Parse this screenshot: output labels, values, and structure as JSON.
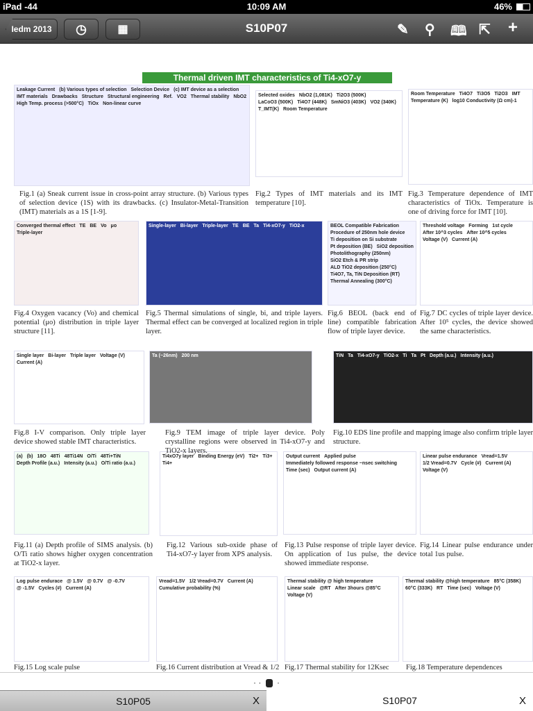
{
  "status": {
    "carrier": "iPad -44",
    "time": "10:09 AM",
    "battery": "46%"
  },
  "toolbar": {
    "back_label": "Iedm 2013",
    "title": "S10P07",
    "icons": [
      "clock-icon",
      "grid-icon",
      "pencil-icon",
      "search-icon",
      "book-icon",
      "share-icon",
      "plus-icon"
    ]
  },
  "poster": {
    "banner": "Thermal driven IMT characteristics of Ti4-xO7-y",
    "figs": {
      "f1": [
        "Leakage Current",
        "(b) Various types of selection",
        "Selection Device",
        "(c) IMT device as a selection",
        "IMT materials",
        "Drawbacks",
        "Structure",
        "Structural engineering",
        "Ref.",
        "VO2",
        "Thermal stability",
        "NbO2",
        "High Temp. process (>500°C)",
        "TiOx",
        "Non-linear curve"
      ],
      "f2": [
        "Selected oxides",
        "NbO2 (1,081K)",
        "Ti2O3 (500K)",
        "LaCoO3 (500K)",
        "Ti4O7 (448K)",
        "SmNiO3 (403K)",
        "VO2 (340K)",
        "T_IMT(K)",
        "Room Temperature"
      ],
      "f3": [
        "Room Temperature",
        "Ti4O7",
        "Ti3O5",
        "Ti2O3",
        "IMT",
        "Temperature (K)",
        "log10 Conductivity (Ω cm)-1"
      ],
      "f4": [
        "Converged thermal effect",
        "TE",
        "BE",
        "Vo",
        "μo",
        "Triple-layer"
      ],
      "f5": [
        "Single-layer",
        "Bi-layer",
        "Triple-layer",
        "TE",
        "BE",
        "Ta",
        "Ti4-xO7-y",
        "TiO2-x"
      ],
      "f6": [
        "BEOL Compatible Fabrication",
        "Procedure of 250nm hole device",
        "Ti deposition on Si substrate",
        "Pt deposition (BE)",
        "SiO2 deposition",
        "Photolithography (250nm)",
        "SiO2 Etch & PR strip",
        "ALD TiO2 deposition (250°C)",
        "Ti4O7, Ta, TiN Deposition (RT)",
        "Thermal Annealing (300°C)"
      ],
      "f7": [
        "Threshold voltage",
        "Forming",
        "1st cycle",
        "After 10^3 cycles",
        "After 10^5 cycles",
        "Voltage (V)",
        "Current (A)"
      ],
      "f8": [
        "Single layer",
        "Bi-layer",
        "Triple layer",
        "Voltage (V)",
        "Current (A)"
      ],
      "f9": [
        "Ta (~26nm)",
        "200 nm"
      ],
      "f10": [
        "TiN",
        "Ta",
        "Ti4-xO7-y",
        "TiO2-x",
        "Ti",
        "Ta",
        "Pt",
        "Depth (a.u.)",
        "Intensity (a.u.)"
      ],
      "f11": [
        "(a)",
        "(b)",
        "18O",
        "48Ti",
        "48Ti14N",
        "O/Ti",
        "48Ti+TiN",
        "Depth Profile (a.u.)",
        "Intensity (a.u.)",
        "O/Ti ratio (a.u.)"
      ],
      "f12": [
        "Ti4xO7y layer",
        "Binding Energy (eV)",
        "Ti2+",
        "Ti3+",
        "Ti4+"
      ],
      "f13": [
        "Output current",
        "Applied pulse",
        "Immediately followed response ~nsec switching",
        "Time (sec)",
        "Output current (A)"
      ],
      "f14": [
        "Linear pulse endurance",
        "Vread=1.5V",
        "1/2 Vread=0.7V",
        "Cycle (#)",
        "Current (A)",
        "Voltage (V)"
      ],
      "f15": [
        "Log pulse endurace",
        "@ 1.5V",
        "@ 0.7V",
        "@ -0.7V",
        "@ -1.5V",
        "Cycles (#)",
        "Current (A)"
      ],
      "f16": [
        "Vread=1.5V",
        "1/2 Vread=0.7V",
        "Current (A)",
        "Cumulative probability (%)"
      ],
      "f17": [
        "Thermal stability @ high temperature",
        "Linear scale",
        "@RT",
        "After 3hours @85°C",
        "Voltage (V)"
      ],
      "f18": [
        "Thermal stability @high temperature",
        "85°C (358K)",
        "60°C (333K)",
        "RT",
        "Time (sec)",
        "Voltage (V)"
      ]
    },
    "captions": {
      "c1": "Fig.1 (a) Sneak current issue in cross-point array structure. (b) Various types of selection device (1S) with its drawbacks. (c) Insulator-Metal-Transition (IMT) materials as a 1S [1-9].",
      "c2": "Fig.2 Types of IMT materials and its IMT temperature [10].",
      "c3": "Fig.3 Temperature dependence of IMT characteristics of TiOx. Temperature is one of driving force for IMT [10].",
      "c4": "Fig.4 Oxygen vacancy (Vo) and chemical potential (μo) distribution in triple layer structure [11].",
      "c5": "Fig.5 Thermal simulations of single, bi, and triple layers. Thermal effect can be converged at localized region in triple layer.",
      "c6": "Fig.6 BEOL (back end of line) compatible fabrication flow of triple layer device.",
      "c7": "Fig.7 DC cycles of triple layer device. After 10⁵ cycles, the device showed the same characteristics.",
      "c8": "Fig.8 I-V comparison. Only triple layer device showed stable IMT characteristics.",
      "c9": "Fig.9 TEM image of triple layer device. Poly crystalline regions were observed in Ti4-xO7-y and TiO2-x layers.",
      "c10": "Fig.10 EDS line profile and mapping image also confirm triple layer structure.",
      "c11": "Fig.11 (a) Depth profile of SIMS analysis. (b) O/Ti ratio shows higher oxygen concentration at TiO2-x layer.",
      "c12": "Fig.12 Various sub-oxide phase of Ti4-xO7-y layer from XPS analysis.",
      "c13": "Fig.13 Pulse response of triple layer device. On application of 1us pulse, the device showed immediate response.",
      "c14": "Fig.14 Linear pulse endurance under total 1us pulse.",
      "c15": "Fig.15 Log scale pulse",
      "c16": "Fig.16 Current distribution at Vread & 1/2",
      "c17": "Fig.17 Thermal stability for 12Ksec",
      "c18": "Fig.18 Temperature dependences"
    }
  },
  "tabs": [
    {
      "label": "S10P05",
      "close": "X",
      "active": false
    },
    {
      "label": "S10P07",
      "close": "X",
      "active": true
    }
  ],
  "colors": {
    "banner": "#3a9a3a",
    "toolbar": "#555555"
  }
}
